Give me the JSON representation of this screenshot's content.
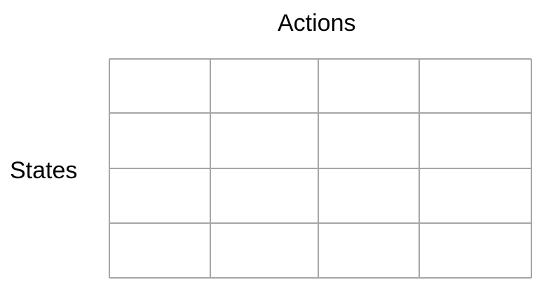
{
  "labels": {
    "columns": "Actions",
    "rows": "States"
  },
  "table": {
    "rows": 4,
    "columns": 4,
    "cells": [
      [
        "",
        "",
        "",
        ""
      ],
      [
        "",
        "",
        "",
        ""
      ],
      [
        "",
        "",
        "",
        ""
      ],
      [
        "",
        "",
        "",
        ""
      ]
    ],
    "line_color": "#a6a6a6"
  }
}
